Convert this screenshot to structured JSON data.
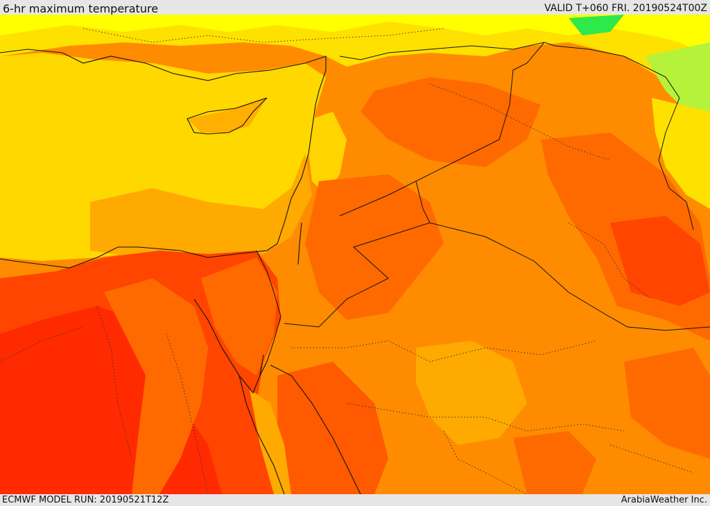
{
  "header": {
    "title": "6-hr maximum temperature",
    "valid": "VALID T+060 FRI. 20190524T00Z"
  },
  "footer": {
    "model_run": "ECMWF MODEL RUN: 20190521T12Z",
    "credit": "ArabiaWeather Inc."
  },
  "palette": {
    "cool_green": "#2fe84a",
    "light_green": "#b6f23a",
    "yellow": "#ffff00",
    "gold": "#ffd800",
    "amber": "#ffaa00",
    "orange": "#ff8c00",
    "dark_orange": "#ff6a00",
    "red_orange": "#ff4500",
    "red": "#ff2a00"
  }
}
